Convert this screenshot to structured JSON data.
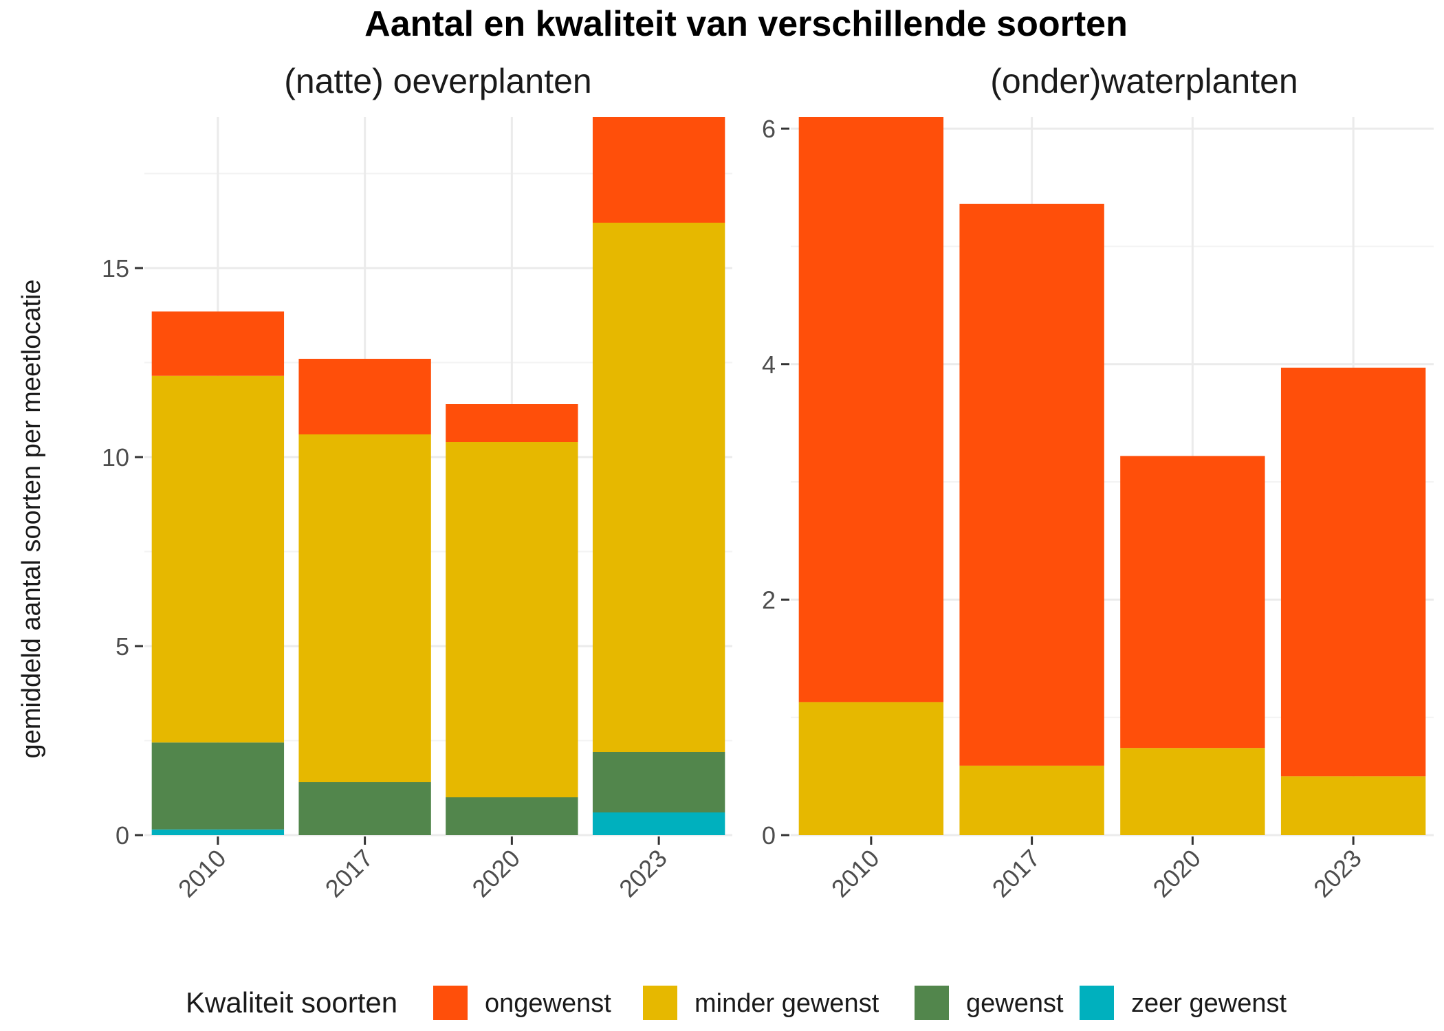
{
  "chart_data": {
    "type": "bar",
    "stacked": true,
    "title": "Aantal en kwaliteit van verschillende soorten",
    "ylabel": "gemiddeld aantal soorten per meetlocatie",
    "legend": {
      "title": "Kwaliteit soorten",
      "placement": "bottom",
      "entries": [
        "ongewenst",
        "minder gewenst",
        "gewenst",
        "zeer gewenst"
      ]
    },
    "colors": {
      "ongewenst": "#FF4F0A",
      "minder gewenst": "#E6B800",
      "gewenst": "#52864C",
      "zeer gewenst": "#00B0BE"
    },
    "grid": true,
    "panels": [
      {
        "title": "(natte) oeverplanten",
        "categories": [
          "2010",
          "2017",
          "2020",
          "2023"
        ],
        "ylim": [
          0,
          19
        ],
        "yticks": [
          0,
          5,
          10,
          15
        ],
        "series": [
          {
            "name": "zeer gewenst",
            "values": [
              0.15,
              0,
              0,
              0.6
            ]
          },
          {
            "name": "gewenst",
            "values": [
              2.3,
              1.4,
              1.0,
              1.6
            ]
          },
          {
            "name": "minder gewenst",
            "values": [
              9.7,
              9.2,
              9.4,
              14.0
            ]
          },
          {
            "name": "ongewenst",
            "values": [
              1.7,
              2.0,
              1.0,
              2.8
            ]
          }
        ]
      },
      {
        "title": "(onder)waterplanten",
        "categories": [
          "2010",
          "2017",
          "2020",
          "2023"
        ],
        "ylim": [
          0,
          6.1
        ],
        "yticks": [
          0,
          2,
          4,
          6
        ],
        "series": [
          {
            "name": "zeer gewenst",
            "values": [
              0,
              0,
              0,
              0
            ]
          },
          {
            "name": "gewenst",
            "values": [
              0,
              0,
              0,
              0
            ]
          },
          {
            "name": "minder gewenst",
            "values": [
              1.13,
              0.59,
              0.74,
              0.5
            ]
          },
          {
            "name": "ongewenst",
            "values": [
              4.97,
              4.77,
              2.48,
              3.47
            ]
          }
        ]
      }
    ]
  }
}
